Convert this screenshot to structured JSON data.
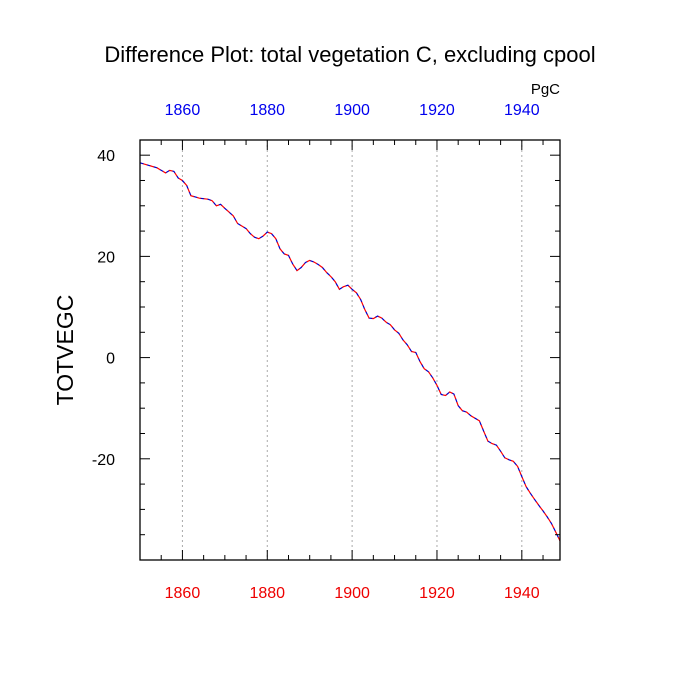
{
  "chart_data": {
    "type": "line",
    "title": "Difference Plot: total vegetation C, excluding cpool",
    "units": "PgC",
    "ylabel": "TOTVEGC",
    "xlabel": "",
    "xlim": [
      1850,
      1949
    ],
    "ylim": [
      -40,
      43
    ],
    "x_ticks": [
      1860,
      1880,
      1900,
      1920,
      1940
    ],
    "x_minor_step": 5,
    "y_ticks": [
      40,
      20,
      0,
      -20
    ],
    "y_minor_step": 5,
    "grid": "vertical dotted at major x ticks",
    "colors": {
      "top_axis_labels": "#0000ee",
      "bottom_axis_labels": "#ee0000",
      "series_a": "#0000cc",
      "series_b": "#ff0000",
      "grid": "#aaaaaa"
    },
    "series": [
      {
        "name": "difference",
        "style": "dashed blue/red overlaid",
        "x": [
          1850,
          1852,
          1854,
          1856,
          1857,
          1858,
          1859,
          1860,
          1861,
          1862,
          1864,
          1866,
          1867,
          1868,
          1869,
          1870,
          1872,
          1873,
          1874,
          1875,
          1876,
          1877,
          1878,
          1879,
          1880,
          1881,
          1882,
          1883,
          1884,
          1885,
          1886,
          1887,
          1888,
          1889,
          1890,
          1891,
          1892,
          1893,
          1894,
          1895,
          1896,
          1897,
          1898,
          1899,
          1900,
          1901,
          1902,
          1903,
          1904,
          1905,
          1906,
          1907,
          1908,
          1909,
          1910,
          1911,
          1912,
          1913,
          1914,
          1915,
          1916,
          1917,
          1918,
          1919,
          1920,
          1921,
          1922,
          1923,
          1924,
          1925,
          1926,
          1927,
          1928,
          1929,
          1930,
          1931,
          1932,
          1933,
          1934,
          1935,
          1936,
          1937,
          1938,
          1939,
          1940,
          1941,
          1942,
          1943,
          1944,
          1945,
          1946,
          1947,
          1948,
          1949
        ],
        "y": [
          38.5,
          38.0,
          37.5,
          36.5,
          37.0,
          36.8,
          35.5,
          35.0,
          34.0,
          32.0,
          31.5,
          31.3,
          31.0,
          30.0,
          30.3,
          29.5,
          28.0,
          26.5,
          26.0,
          25.5,
          24.5,
          23.8,
          23.5,
          24.0,
          24.8,
          24.5,
          23.5,
          21.5,
          20.5,
          20.2,
          18.5,
          17.2,
          17.8,
          18.8,
          19.2,
          18.9,
          18.4,
          17.8,
          16.8,
          16.0,
          15.0,
          13.5,
          14.0,
          14.3,
          13.5,
          12.8,
          11.5,
          9.5,
          7.8,
          7.7,
          8.2,
          7.8,
          7.0,
          6.5,
          5.5,
          4.8,
          3.5,
          2.5,
          1.2,
          1.0,
          -0.8,
          -2.2,
          -2.8,
          -4.0,
          -5.5,
          -7.3,
          -7.5,
          -6.8,
          -7.2,
          -9.5,
          -10.5,
          -10.8,
          -11.5,
          -12.0,
          -12.5,
          -14.5,
          -16.5,
          -17.0,
          -17.3,
          -18.5,
          -19.8,
          -20.2,
          -20.5,
          -21.5,
          -23.5,
          -25.5,
          -26.8,
          -28.0,
          -29.2,
          -30.3,
          -31.5,
          -32.8,
          -34.5,
          -36.2
        ]
      }
    ]
  }
}
